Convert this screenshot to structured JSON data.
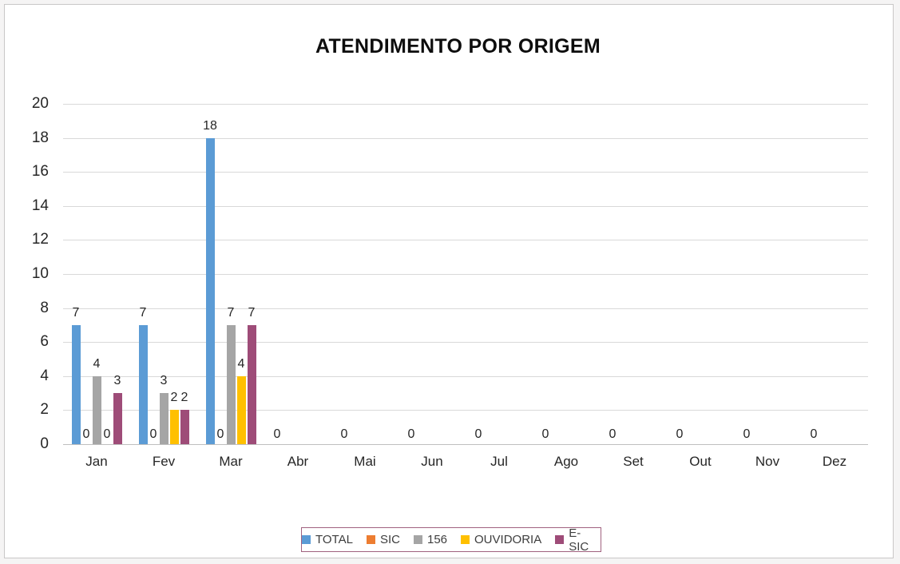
{
  "title": "ATENDIMENTO POR ORIGEM",
  "colors": {
    "total": "#5B9BD5",
    "sic": "#ED7D31",
    "c156": "#A5A5A5",
    "ouvidoria": "#FFC000",
    "esic": "#9E4C78",
    "gridline": "#D9D9D9",
    "axis_line": "#BFBFBF",
    "legend_border": "#A0627F",
    "text": "#262626"
  },
  "chart_data": {
    "type": "bar",
    "title": "ATENDIMENTO POR ORIGEM",
    "categories": [
      "Jan",
      "Fev",
      "Mar",
      "Abr",
      "Mai",
      "Jun",
      "Jul",
      "Ago",
      "Set",
      "Out",
      "Nov",
      "Dez"
    ],
    "series": [
      {
        "name": "TOTAL",
        "color": "#5B9BD5",
        "values": [
          7,
          7,
          18,
          0,
          0,
          0,
          0,
          0,
          0,
          0,
          0,
          0
        ]
      },
      {
        "name": "SIC",
        "color": "#ED7D31",
        "values": [
          0,
          0,
          0,
          null,
          null,
          null,
          null,
          null,
          null,
          null,
          null,
          null
        ]
      },
      {
        "name": "156",
        "color": "#A5A5A5",
        "values": [
          4,
          3,
          7,
          null,
          null,
          null,
          null,
          null,
          null,
          null,
          null,
          null
        ]
      },
      {
        "name": "OUVIDORIA",
        "color": "#FFC000",
        "values": [
          0,
          2,
          4,
          null,
          null,
          null,
          null,
          null,
          null,
          null,
          null,
          null
        ]
      },
      {
        "name": "E-SIC",
        "color": "#9E4C78",
        "values": [
          3,
          2,
          7,
          null,
          null,
          null,
          null,
          null,
          null,
          null,
          null,
          null
        ]
      }
    ],
    "xlabel": "",
    "ylabel": "",
    "ylim": [
      0,
      20
    ],
    "ytick_step": 2,
    "grid": true,
    "data_labels": true,
    "legend_position": "bottom"
  }
}
